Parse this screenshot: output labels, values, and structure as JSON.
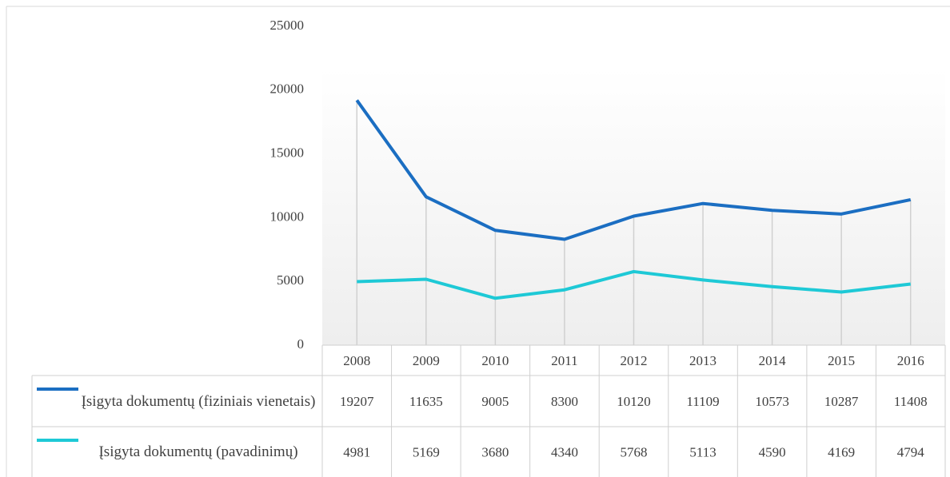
{
  "chart_data": {
    "type": "line",
    "categories": [
      "2008",
      "2009",
      "2010",
      "2011",
      "2012",
      "2013",
      "2014",
      "2015",
      "2016"
    ],
    "series": [
      {
        "name": "Įsigyta dokumentų (fiziniais vienetais)",
        "color": "#1b6ec2",
        "values": [
          19207,
          11635,
          9005,
          8300,
          10120,
          11109,
          10573,
          10287,
          11408
        ]
      },
      {
        "name": "Įsigyta dokumentų (pavadinimų)",
        "color": "#1ec9d6",
        "values": [
          4981,
          5169,
          3680,
          4340,
          5768,
          5113,
          4590,
          4169,
          4794
        ]
      }
    ],
    "ylim": [
      0,
      25000
    ],
    "yticks": [
      0,
      5000,
      10000,
      15000,
      20000,
      25000
    ],
    "grid": false,
    "drop_lines": true
  }
}
